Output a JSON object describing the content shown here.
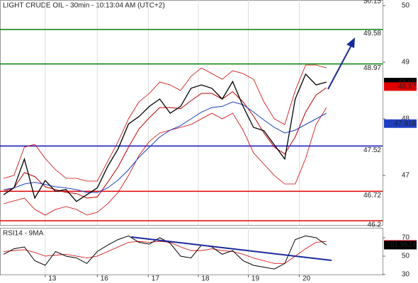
{
  "chart_data": [
    {
      "type": "line",
      "title": "LIGHT CRUDE OIL - 30min - 10:13:04 AM (UTC+2)",
      "x": [
        0,
        1,
        2,
        3,
        4,
        5,
        6,
        7,
        8,
        9,
        10,
        11,
        12,
        13,
        14,
        15,
        16,
        17,
        18,
        19,
        20,
        21,
        22,
        23,
        24,
        25,
        26,
        27,
        28,
        29,
        30,
        31
      ],
      "xlim": [
        -0.34,
        36.39
      ],
      "xticks": [
        {
          "value": 4.0,
          "label": "13"
        },
        {
          "value": 9.0,
          "label": "16"
        },
        {
          "value": 13.9,
          "label": "17"
        },
        {
          "value": 18.7,
          "label": "18"
        },
        {
          "value": 23.5,
          "label": "19"
        },
        {
          "value": 28.4,
          "label": "20"
        }
      ],
      "ylim": [
        46.125,
        50.1
      ],
      "yticks": [
        50,
        49,
        48,
        47
      ],
      "series": [
        {
          "color": "#d00000",
          "width": 0.8,
          "values": [
            46.95,
            47.0,
            47.5,
            47.55,
            47.3,
            47.1,
            46.95,
            46.95,
            46.9,
            46.9,
            47.25,
            47.6,
            48.0,
            48.3,
            48.45,
            48.65,
            48.6,
            48.5,
            48.75,
            48.9,
            48.8,
            48.7,
            48.85,
            48.8,
            48.7,
            48.3,
            48.0,
            47.9,
            48.5,
            48.95,
            48.95,
            48.9
          ]
        },
        {
          "color": "#d00000",
          "width": 0.8,
          "values": [
            46.5,
            46.55,
            46.6,
            46.4,
            46.3,
            46.4,
            46.45,
            46.4,
            46.3,
            46.35,
            46.5,
            46.7,
            47.0,
            47.35,
            47.6,
            47.75,
            47.8,
            47.85,
            47.9,
            48.0,
            48.1,
            48.0,
            48.1,
            47.8,
            47.4,
            47.2,
            47.0,
            46.85,
            46.85,
            47.3,
            47.9,
            48.2
          ]
        },
        {
          "color": "#c00000",
          "width": 1,
          "values": [
            46.72,
            46.78,
            47.05,
            46.98,
            46.8,
            46.75,
            46.7,
            46.68,
            46.6,
            46.62,
            46.88,
            47.15,
            47.5,
            47.82,
            48.02,
            48.2,
            48.2,
            48.18,
            48.32,
            48.45,
            48.45,
            48.35,
            48.48,
            48.3,
            48.05,
            47.75,
            47.5,
            47.38,
            47.68,
            48.12,
            48.42,
            48.55
          ]
        },
        {
          "color": "#1f3fc0",
          "width": 1,
          "values": [
            46.75,
            46.78,
            46.85,
            46.88,
            46.84,
            46.8,
            46.78,
            46.75,
            46.7,
            46.7,
            46.78,
            46.92,
            47.1,
            47.32,
            47.5,
            47.68,
            47.8,
            47.88,
            48.0,
            48.12,
            48.2,
            48.22,
            48.3,
            48.25,
            48.12,
            47.98,
            47.85,
            47.75,
            47.8,
            47.9,
            48.0,
            48.1
          ]
        },
        {
          "color": "#000000",
          "width": 1.3,
          "values": [
            46.66,
            46.78,
            47.29,
            46.6,
            46.91,
            46.72,
            46.75,
            46.54,
            46.66,
            46.78,
            47.16,
            47.47,
            47.91,
            48.04,
            48.22,
            48.35,
            48.1,
            48.22,
            48.54,
            48.6,
            48.54,
            48.35,
            48.66,
            48.22,
            47.85,
            47.79,
            47.54,
            47.29,
            48.35,
            48.79,
            48.6,
            48.65
          ]
        }
      ],
      "levels": [
        {
          "value": 50.15,
          "color": "#008000"
        },
        {
          "value": 49.58,
          "color": "#008000"
        },
        {
          "value": 48.97,
          "color": "#008000"
        },
        {
          "value": 47.52,
          "color": "#1010c0"
        },
        {
          "value": 46.72,
          "color": "#e00000"
        },
        {
          "value": 46.2,
          "color": "#e00000"
        }
      ],
      "markers": [
        {
          "value": 48.65,
          "color": "#000000"
        },
        {
          "value": 48.57,
          "color": "#e00000"
        },
        {
          "value": 47.916,
          "color": "#1f3fc0"
        }
      ]
    },
    {
      "type": "line",
      "title": "RSI14 - 9MA",
      "x": [
        0,
        1,
        2,
        3,
        4,
        5,
        6,
        7,
        8,
        9,
        10,
        11,
        12,
        13,
        14,
        15,
        16,
        17,
        18,
        19,
        20,
        21,
        22,
        23,
        24,
        25,
        26,
        27,
        28,
        29,
        30,
        31
      ],
      "xlim": [
        -0.34,
        36.39
      ],
      "ylim": [
        30,
        80.8
      ],
      "yticks": [
        70,
        50,
        30
      ],
      "series": [
        {
          "color": "#d00000",
          "width": 0.8,
          "values": [
            55,
            56,
            57,
            54,
            50,
            51,
            52,
            50,
            48,
            50,
            55,
            60,
            65,
            66,
            65,
            66,
            65,
            60,
            56,
            56,
            58,
            56,
            55,
            52,
            48,
            45,
            42,
            42,
            50,
            58,
            65,
            66
          ]
        },
        {
          "color": "#000000",
          "width": 1,
          "values": [
            52,
            58,
            60,
            45,
            40,
            55,
            50,
            48,
            42,
            55,
            62,
            68,
            72,
            65,
            63,
            70,
            64,
            50,
            48,
            62,
            60,
            52,
            56,
            45,
            40,
            38,
            36,
            42,
            68,
            72,
            70,
            62
          ]
        }
      ],
      "markers": [
        {
          "value": 62.7254,
          "color": "#e00000"
        },
        {
          "value": 61.9624,
          "color": "#000000"
        }
      ]
    }
  ]
}
